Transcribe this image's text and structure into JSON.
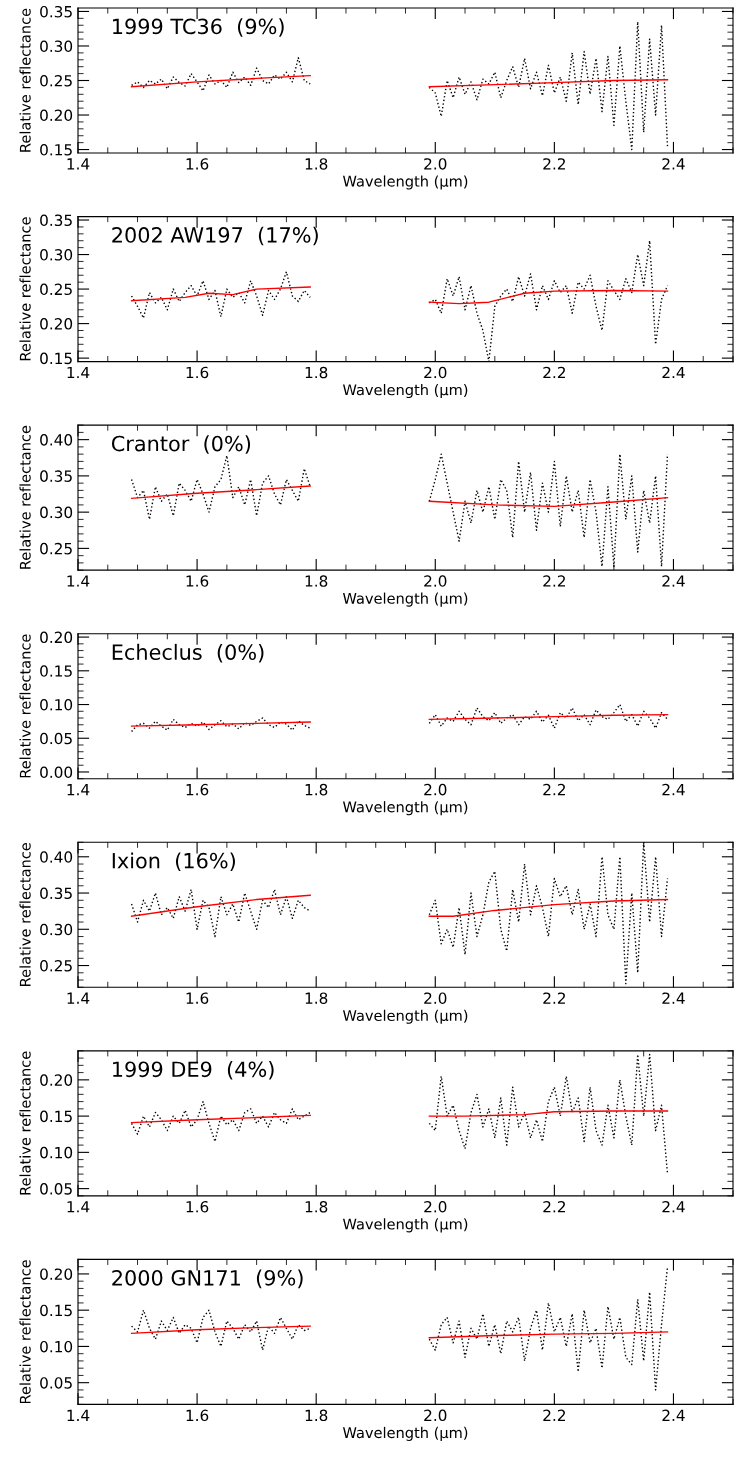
{
  "chart_data": [
    {
      "type": "line",
      "annotations": [
        "1999 TC36  (9%)"
      ],
      "xlabel": "Wavelength (μm)",
      "ylabel": "Relative reflectance",
      "xlim": [
        1.4,
        2.5
      ],
      "xticks": [
        {
          "value": 1.4,
          "label": "1.4"
        },
        {
          "value": 1.6,
          "label": "1.6"
        },
        {
          "value": 1.8,
          "label": "1.8"
        },
        {
          "value": 2.0,
          "label": "2.0"
        },
        {
          "value": 2.2,
          "label": "2.2"
        },
        {
          "value": 2.4,
          "label": "2.4"
        }
      ],
      "ylim": [
        0.145,
        0.355
      ],
      "yticks": [
        {
          "value": 0.15,
          "label": "0.15"
        },
        {
          "value": 0.2,
          "label": "0.20"
        },
        {
          "value": 0.25,
          "label": "0.25"
        },
        {
          "value": 0.3,
          "label": "0.30"
        },
        {
          "value": 0.35,
          "label": "0.35"
        }
      ],
      "legend": false,
      "grid": false,
      "marker": "none",
      "series": [
        {
          "color": "#000000",
          "line_style": "dotted",
          "x": [
            1.49,
            1.5,
            1.51,
            1.52,
            1.53,
            1.54,
            1.55,
            1.56,
            1.57,
            1.58,
            1.59,
            1.6,
            1.61,
            1.62,
            1.63,
            1.64,
            1.65,
            1.66,
            1.67,
            1.68,
            1.69,
            1.7,
            1.71,
            1.72,
            1.73,
            1.74,
            1.75,
            1.76,
            1.77,
            1.78,
            1.79,
            null,
            1.99,
            2.0,
            2.01,
            2.02,
            2.03,
            2.04,
            2.05,
            2.06,
            2.07,
            2.08,
            2.09,
            2.1,
            2.11,
            2.12,
            2.13,
            2.14,
            2.15,
            2.16,
            2.17,
            2.18,
            2.19,
            2.2,
            2.21,
            2.22,
            2.23,
            2.24,
            2.25,
            2.26,
            2.27,
            2.28,
            2.29,
            2.3,
            2.31,
            2.32,
            2.33,
            2.34,
            2.35,
            2.36,
            2.37,
            2.38,
            2.39
          ],
          "values": [
            0.243,
            0.248,
            0.24,
            0.25,
            0.245,
            0.252,
            0.238,
            0.255,
            0.247,
            0.242,
            0.26,
            0.248,
            0.235,
            0.258,
            0.245,
            0.25,
            0.24,
            0.262,
            0.247,
            0.255,
            0.243,
            0.268,
            0.25,
            0.245,
            0.258,
            0.252,
            0.262,
            0.248,
            0.283,
            0.25,
            0.245,
            null,
            0.24,
            0.232,
            0.198,
            0.25,
            0.225,
            0.255,
            0.23,
            0.248,
            0.222,
            0.252,
            0.245,
            0.262,
            0.225,
            0.25,
            0.27,
            0.24,
            0.282,
            0.238,
            0.262,
            0.228,
            0.272,
            0.232,
            0.255,
            0.22,
            0.29,
            0.215,
            0.292,
            0.23,
            0.282,
            0.205,
            0.285,
            0.185,
            0.3,
            0.22,
            0.15,
            0.335,
            0.175,
            0.31,
            0.2,
            0.33,
            0.155
          ]
        },
        {
          "color": "#ff0000",
          "line_style": "solid",
          "x": [
            1.49,
            1.6,
            1.7,
            1.79,
            null,
            1.99,
            2.1,
            2.2,
            2.3,
            2.39
          ],
          "values": [
            0.241,
            0.248,
            0.253,
            0.257,
            null,
            0.241,
            0.244,
            0.247,
            0.25,
            0.251
          ]
        }
      ]
    },
    {
      "type": "line",
      "annotations": [
        "2002 AW197  (17%)"
      ],
      "xlabel": "Wavelength (μm)",
      "ylabel": "Relative reflectance",
      "xlim": [
        1.4,
        2.5
      ],
      "xticks": [
        {
          "value": 1.4,
          "label": "1.4"
        },
        {
          "value": 1.6,
          "label": "1.6"
        },
        {
          "value": 1.8,
          "label": "1.8"
        },
        {
          "value": 2.0,
          "label": "2.0"
        },
        {
          "value": 2.2,
          "label": "2.2"
        },
        {
          "value": 2.4,
          "label": "2.4"
        }
      ],
      "ylim": [
        0.145,
        0.355
      ],
      "yticks": [
        {
          "value": 0.15,
          "label": "0.15"
        },
        {
          "value": 0.2,
          "label": "0.20"
        },
        {
          "value": 0.25,
          "label": "0.25"
        },
        {
          "value": 0.3,
          "label": "0.30"
        },
        {
          "value": 0.35,
          "label": "0.35"
        }
      ],
      "legend": false,
      "grid": false,
      "marker": "none",
      "series": [
        {
          "color": "#000000",
          "line_style": "dotted",
          "x": [
            1.49,
            1.5,
            1.51,
            1.52,
            1.53,
            1.54,
            1.55,
            1.56,
            1.57,
            1.58,
            1.59,
            1.6,
            1.61,
            1.62,
            1.63,
            1.64,
            1.65,
            1.66,
            1.67,
            1.68,
            1.69,
            1.7,
            1.71,
            1.72,
            1.73,
            1.74,
            1.75,
            1.76,
            1.77,
            1.78,
            1.79,
            null,
            1.99,
            2.0,
            2.01,
            2.02,
            2.03,
            2.04,
            2.05,
            2.06,
            2.07,
            2.08,
            2.09,
            2.1,
            2.11,
            2.12,
            2.13,
            2.14,
            2.15,
            2.16,
            2.17,
            2.18,
            2.19,
            2.2,
            2.21,
            2.22,
            2.23,
            2.24,
            2.25,
            2.26,
            2.27,
            2.28,
            2.29,
            2.3,
            2.31,
            2.32,
            2.33,
            2.34,
            2.35,
            2.36,
            2.37,
            2.38,
            2.39
          ],
          "values": [
            0.24,
            0.225,
            0.208,
            0.245,
            0.23,
            0.238,
            0.22,
            0.25,
            0.232,
            0.245,
            0.255,
            0.24,
            0.262,
            0.235,
            0.248,
            0.21,
            0.25,
            0.238,
            0.245,
            0.23,
            0.262,
            0.24,
            0.212,
            0.248,
            0.235,
            0.25,
            0.275,
            0.24,
            0.232,
            0.248,
            0.238,
            null,
            0.23,
            0.235,
            0.215,
            0.265,
            0.24,
            0.268,
            0.22,
            0.255,
            0.215,
            0.19,
            0.145,
            0.225,
            0.24,
            0.25,
            0.232,
            0.268,
            0.24,
            0.272,
            0.22,
            0.255,
            0.235,
            0.262,
            0.245,
            0.255,
            0.215,
            0.26,
            0.25,
            0.27,
            0.225,
            0.19,
            0.262,
            0.248,
            0.235,
            0.265,
            0.245,
            0.3,
            0.255,
            0.32,
            0.17,
            0.235,
            0.255
          ]
        },
        {
          "color": "#ff0000",
          "line_style": "solid",
          "x": [
            1.49,
            1.58,
            1.62,
            1.66,
            1.7,
            1.79,
            null,
            1.99,
            2.04,
            2.09,
            2.15,
            2.2,
            2.3,
            2.39
          ],
          "values": [
            0.233,
            0.238,
            0.244,
            0.242,
            0.25,
            0.253,
            null,
            0.231,
            0.229,
            0.231,
            0.244,
            0.247,
            0.248,
            0.247
          ]
        }
      ]
    },
    {
      "type": "line",
      "annotations": [
        "Crantor  (0%)"
      ],
      "xlabel": "Wavelength (μm)",
      "ylabel": "Relative reflectance",
      "xlim": [
        1.4,
        2.5
      ],
      "xticks": [
        {
          "value": 1.4,
          "label": "1.4"
        },
        {
          "value": 1.6,
          "label": "1.6"
        },
        {
          "value": 1.8,
          "label": "1.8"
        },
        {
          "value": 2.0,
          "label": "2.0"
        },
        {
          "value": 2.2,
          "label": "2.2"
        },
        {
          "value": 2.4,
          "label": "2.4"
        }
      ],
      "ylim": [
        0.22,
        0.42
      ],
      "yticks": [
        {
          "value": 0.25,
          "label": "0.25"
        },
        {
          "value": 0.3,
          "label": "0.30"
        },
        {
          "value": 0.35,
          "label": "0.35"
        },
        {
          "value": 0.4,
          "label": "0.40"
        }
      ],
      "legend": false,
      "grid": false,
      "marker": "none",
      "series": [
        {
          "color": "#000000",
          "line_style": "dotted",
          "x": [
            1.49,
            1.5,
            1.51,
            1.52,
            1.53,
            1.54,
            1.55,
            1.56,
            1.57,
            1.58,
            1.59,
            1.6,
            1.61,
            1.62,
            1.63,
            1.64,
            1.65,
            1.66,
            1.67,
            1.68,
            1.69,
            1.7,
            1.71,
            1.72,
            1.73,
            1.74,
            1.75,
            1.76,
            1.77,
            1.78,
            1.79,
            null,
            1.99,
            2.0,
            2.01,
            2.02,
            2.03,
            2.04,
            2.05,
            2.06,
            2.07,
            2.08,
            2.09,
            2.1,
            2.11,
            2.12,
            2.13,
            2.14,
            2.15,
            2.16,
            2.17,
            2.18,
            2.19,
            2.2,
            2.21,
            2.22,
            2.23,
            2.24,
            2.25,
            2.26,
            2.27,
            2.28,
            2.29,
            2.3,
            2.31,
            2.32,
            2.33,
            2.34,
            2.35,
            2.36,
            2.37,
            2.38,
            2.39
          ],
          "values": [
            0.345,
            0.32,
            0.33,
            0.29,
            0.335,
            0.315,
            0.325,
            0.295,
            0.34,
            0.33,
            0.315,
            0.345,
            0.325,
            0.3,
            0.335,
            0.345,
            0.378,
            0.32,
            0.335,
            0.31,
            0.345,
            0.295,
            0.34,
            0.35,
            0.325,
            0.31,
            0.345,
            0.33,
            0.315,
            0.36,
            0.335,
            null,
            0.315,
            0.345,
            0.38,
            0.34,
            0.3,
            0.26,
            0.315,
            0.285,
            0.33,
            0.3,
            0.335,
            0.29,
            0.345,
            0.33,
            0.265,
            0.37,
            0.3,
            0.355,
            0.275,
            0.34,
            0.3,
            0.37,
            0.28,
            0.35,
            0.3,
            0.33,
            0.265,
            0.345,
            0.3,
            0.225,
            0.335,
            0.225,
            0.38,
            0.29,
            0.35,
            0.245,
            0.33,
            0.285,
            0.35,
            0.225,
            0.38
          ]
        },
        {
          "color": "#ff0000",
          "line_style": "solid",
          "x": [
            1.49,
            1.6,
            1.7,
            1.79,
            null,
            1.99,
            2.1,
            2.2,
            2.3,
            2.39
          ],
          "values": [
            0.319,
            0.326,
            0.331,
            0.336,
            null,
            0.315,
            0.31,
            0.308,
            0.314,
            0.32
          ]
        }
      ]
    },
    {
      "type": "line",
      "annotations": [
        "Echeclus  (0%)"
      ],
      "xlabel": "Wavelength (μm)",
      "ylabel": "Relative reflectance",
      "xlim": [
        1.4,
        2.5
      ],
      "xticks": [
        {
          "value": 1.4,
          "label": "1.4"
        },
        {
          "value": 1.6,
          "label": "1.6"
        },
        {
          "value": 1.8,
          "label": "1.8"
        },
        {
          "value": 2.0,
          "label": "2.0"
        },
        {
          "value": 2.2,
          "label": "2.2"
        },
        {
          "value": 2.4,
          "label": "2.4"
        }
      ],
      "ylim": [
        -0.01,
        0.205
      ],
      "yticks": [
        {
          "value": 0.0,
          "label": "0.00"
        },
        {
          "value": 0.05,
          "label": "0.05"
        },
        {
          "value": 0.1,
          "label": "0.10"
        },
        {
          "value": 0.15,
          "label": "0.15"
        },
        {
          "value": 0.2,
          "label": "0.20"
        }
      ],
      "legend": false,
      "grid": false,
      "marker": "none",
      "series": [
        {
          "color": "#000000",
          "line_style": "dotted",
          "x": [
            1.49,
            1.5,
            1.51,
            1.52,
            1.53,
            1.54,
            1.55,
            1.56,
            1.57,
            1.58,
            1.59,
            1.6,
            1.61,
            1.62,
            1.63,
            1.64,
            1.65,
            1.66,
            1.67,
            1.68,
            1.69,
            1.7,
            1.71,
            1.72,
            1.73,
            1.74,
            1.75,
            1.76,
            1.77,
            1.78,
            1.79,
            null,
            1.99,
            2.0,
            2.01,
            2.02,
            2.03,
            2.04,
            2.05,
            2.06,
            2.07,
            2.08,
            2.09,
            2.1,
            2.11,
            2.12,
            2.13,
            2.14,
            2.15,
            2.16,
            2.17,
            2.18,
            2.19,
            2.2,
            2.21,
            2.22,
            2.23,
            2.24,
            2.25,
            2.26,
            2.27,
            2.28,
            2.29,
            2.3,
            2.31,
            2.32,
            2.33,
            2.34,
            2.35,
            2.36,
            2.37,
            2.38,
            2.39
          ],
          "values": [
            0.06,
            0.07,
            0.072,
            0.065,
            0.075,
            0.068,
            0.062,
            0.078,
            0.07,
            0.066,
            0.072,
            0.068,
            0.074,
            0.063,
            0.07,
            0.076,
            0.067,
            0.071,
            0.064,
            0.073,
            0.069,
            0.075,
            0.08,
            0.07,
            0.066,
            0.074,
            0.071,
            0.062,
            0.076,
            0.069,
            0.065,
            null,
            0.072,
            0.085,
            0.068,
            0.08,
            0.075,
            0.09,
            0.078,
            0.07,
            0.095,
            0.082,
            0.076,
            0.088,
            0.072,
            0.08,
            0.085,
            0.07,
            0.082,
            0.078,
            0.09,
            0.074,
            0.084,
            0.065,
            0.088,
            0.08,
            0.095,
            0.076,
            0.085,
            0.07,
            0.092,
            0.082,
            0.078,
            0.088,
            0.1,
            0.075,
            0.085,
            0.068,
            0.09,
            0.08,
            0.065,
            0.088,
            0.078
          ]
        },
        {
          "color": "#ff0000",
          "line_style": "solid",
          "x": [
            1.49,
            1.6,
            1.7,
            1.79,
            null,
            1.99,
            2.1,
            2.2,
            2.3,
            2.39
          ],
          "values": [
            0.068,
            0.07,
            0.072,
            0.074,
            null,
            0.078,
            0.08,
            0.082,
            0.084,
            0.085
          ]
        }
      ]
    },
    {
      "type": "line",
      "annotations": [
        "Ixion  (16%)"
      ],
      "xlabel": "Wavelength (μm)",
      "ylabel": "Relative reflectance",
      "xlim": [
        1.4,
        2.5
      ],
      "xticks": [
        {
          "value": 1.4,
          "label": "1.4"
        },
        {
          "value": 1.6,
          "label": "1.6"
        },
        {
          "value": 1.8,
          "label": "1.8"
        },
        {
          "value": 2.0,
          "label": "2.0"
        },
        {
          "value": 2.2,
          "label": "2.2"
        },
        {
          "value": 2.4,
          "label": "2.4"
        }
      ],
      "ylim": [
        0.22,
        0.42
      ],
      "yticks": [
        {
          "value": 0.25,
          "label": "0.25"
        },
        {
          "value": 0.3,
          "label": "0.30"
        },
        {
          "value": 0.35,
          "label": "0.35"
        },
        {
          "value": 0.4,
          "label": "0.40"
        }
      ],
      "legend": false,
      "grid": false,
      "marker": "none",
      "series": [
        {
          "color": "#000000",
          "line_style": "dotted",
          "x": [
            1.49,
            1.5,
            1.51,
            1.52,
            1.53,
            1.54,
            1.55,
            1.56,
            1.57,
            1.58,
            1.59,
            1.6,
            1.61,
            1.62,
            1.63,
            1.64,
            1.65,
            1.66,
            1.67,
            1.68,
            1.69,
            1.7,
            1.71,
            1.72,
            1.73,
            1.74,
            1.75,
            1.76,
            1.77,
            1.78,
            1.79,
            null,
            1.99,
            2.0,
            2.01,
            2.02,
            2.03,
            2.04,
            2.05,
            2.06,
            2.07,
            2.08,
            2.09,
            2.1,
            2.11,
            2.12,
            2.13,
            2.14,
            2.15,
            2.16,
            2.17,
            2.18,
            2.19,
            2.2,
            2.21,
            2.22,
            2.23,
            2.24,
            2.25,
            2.26,
            2.27,
            2.28,
            2.29,
            2.3,
            2.31,
            2.32,
            2.33,
            2.34,
            2.35,
            2.36,
            2.37,
            2.38,
            2.39
          ],
          "values": [
            0.335,
            0.31,
            0.34,
            0.325,
            0.35,
            0.32,
            0.33,
            0.315,
            0.345,
            0.325,
            0.355,
            0.3,
            0.34,
            0.33,
            0.29,
            0.345,
            0.32,
            0.335,
            0.31,
            0.35,
            0.325,
            0.3,
            0.34,
            0.33,
            0.355,
            0.32,
            0.345,
            0.315,
            0.34,
            0.33,
            0.325,
            null,
            0.32,
            0.34,
            0.28,
            0.3,
            0.275,
            0.33,
            0.265,
            0.35,
            0.29,
            0.32,
            0.365,
            0.38,
            0.3,
            0.27,
            0.355,
            0.31,
            0.39,
            0.32,
            0.36,
            0.33,
            0.29,
            0.37,
            0.345,
            0.36,
            0.32,
            0.355,
            0.3,
            0.335,
            0.29,
            0.4,
            0.32,
            0.3,
            0.4,
            0.225,
            0.35,
            0.24,
            0.42,
            0.31,
            0.4,
            0.29,
            0.37
          ]
        },
        {
          "color": "#ff0000",
          "line_style": "solid",
          "x": [
            1.49,
            1.6,
            1.7,
            1.79,
            null,
            1.99,
            2.03,
            2.1,
            2.2,
            2.3,
            2.39
          ],
          "values": [
            0.318,
            0.331,
            0.341,
            0.347,
            null,
            0.318,
            0.318,
            0.326,
            0.334,
            0.339,
            0.341
          ]
        }
      ]
    },
    {
      "type": "line",
      "annotations": [
        "1999 DE9  (4%)"
      ],
      "xlabel": "Wavelength (μm)",
      "ylabel": "Relative reflectance",
      "xlim": [
        1.4,
        2.5
      ],
      "xticks": [
        {
          "value": 1.4,
          "label": "1.4"
        },
        {
          "value": 1.6,
          "label": "1.6"
        },
        {
          "value": 1.8,
          "label": "1.8"
        },
        {
          "value": 2.0,
          "label": "2.0"
        },
        {
          "value": 2.2,
          "label": "2.2"
        },
        {
          "value": 2.4,
          "label": "2.4"
        }
      ],
      "ylim": [
        0.04,
        0.24
      ],
      "yticks": [
        {
          "value": 0.05,
          "label": "0.05"
        },
        {
          "value": 0.1,
          "label": "0.10"
        },
        {
          "value": 0.15,
          "label": "0.15"
        },
        {
          "value": 0.2,
          "label": "0.20"
        }
      ],
      "legend": false,
      "grid": false,
      "marker": "none",
      "series": [
        {
          "color": "#000000",
          "line_style": "dotted",
          "x": [
            1.49,
            1.5,
            1.51,
            1.52,
            1.53,
            1.54,
            1.55,
            1.56,
            1.57,
            1.58,
            1.59,
            1.6,
            1.61,
            1.62,
            1.63,
            1.64,
            1.65,
            1.66,
            1.67,
            1.68,
            1.69,
            1.7,
            1.71,
            1.72,
            1.73,
            1.74,
            1.75,
            1.76,
            1.77,
            1.78,
            1.79,
            null,
            1.99,
            2.0,
            2.01,
            2.02,
            2.03,
            2.04,
            2.05,
            2.06,
            2.07,
            2.08,
            2.09,
            2.1,
            2.11,
            2.12,
            2.13,
            2.14,
            2.15,
            2.16,
            2.17,
            2.18,
            2.19,
            2.2,
            2.21,
            2.22,
            2.23,
            2.24,
            2.25,
            2.26,
            2.27,
            2.28,
            2.29,
            2.3,
            2.31,
            2.32,
            2.33,
            2.34,
            2.35,
            2.36,
            2.37,
            2.38,
            2.39
          ],
          "values": [
            0.14,
            0.125,
            0.15,
            0.135,
            0.155,
            0.145,
            0.13,
            0.15,
            0.14,
            0.158,
            0.135,
            0.145,
            0.17,
            0.14,
            0.115,
            0.15,
            0.138,
            0.145,
            0.13,
            0.155,
            0.16,
            0.14,
            0.15,
            0.135,
            0.155,
            0.145,
            0.14,
            0.16,
            0.145,
            0.15,
            0.155,
            null,
            0.14,
            0.13,
            0.205,
            0.15,
            0.165,
            0.13,
            0.105,
            0.155,
            0.18,
            0.135,
            0.16,
            0.12,
            0.175,
            0.11,
            0.19,
            0.135,
            0.155,
            0.12,
            0.145,
            0.115,
            0.17,
            0.19,
            0.15,
            0.205,
            0.155,
            0.175,
            0.115,
            0.19,
            0.13,
            0.11,
            0.165,
            0.12,
            0.2,
            0.15,
            0.11,
            0.235,
            0.15,
            0.235,
            0.13,
            0.165,
            0.07
          ]
        },
        {
          "color": "#ff0000",
          "line_style": "solid",
          "x": [
            1.49,
            1.6,
            1.7,
            1.79,
            null,
            1.99,
            2.05,
            2.15,
            2.2,
            2.3,
            2.39
          ],
          "values": [
            0.141,
            0.145,
            0.148,
            0.151,
            null,
            0.15,
            0.15,
            0.152,
            0.156,
            0.157,
            0.157
          ]
        }
      ]
    },
    {
      "type": "line",
      "annotations": [
        "2000 GN171  (9%)"
      ],
      "xlabel": "Wavelength (μm)",
      "ylabel": "Relative reflectance",
      "xlim": [
        1.4,
        2.5
      ],
      "xticks": [
        {
          "value": 1.4,
          "label": "1.4"
        },
        {
          "value": 1.6,
          "label": "1.6"
        },
        {
          "value": 1.8,
          "label": "1.8"
        },
        {
          "value": 2.0,
          "label": "2.0"
        },
        {
          "value": 2.2,
          "label": "2.2"
        },
        {
          "value": 2.4,
          "label": "2.4"
        }
      ],
      "ylim": [
        0.02,
        0.22
      ],
      "yticks": [
        {
          "value": 0.05,
          "label": "0.05"
        },
        {
          "value": 0.1,
          "label": "0.10"
        },
        {
          "value": 0.15,
          "label": "0.15"
        },
        {
          "value": 0.2,
          "label": "0.20"
        }
      ],
      "legend": false,
      "grid": false,
      "marker": "none",
      "series": [
        {
          "color": "#000000",
          "line_style": "dotted",
          "x": [
            1.49,
            1.5,
            1.51,
            1.52,
            1.53,
            1.54,
            1.55,
            1.56,
            1.57,
            1.58,
            1.59,
            1.6,
            1.61,
            1.62,
            1.63,
            1.64,
            1.65,
            1.66,
            1.67,
            1.68,
            1.69,
            1.7,
            1.71,
            1.72,
            1.73,
            1.74,
            1.75,
            1.76,
            1.77,
            1.78,
            1.79,
            null,
            1.99,
            2.0,
            2.01,
            2.02,
            2.03,
            2.04,
            2.05,
            2.06,
            2.07,
            2.08,
            2.09,
            2.1,
            2.11,
            2.12,
            2.13,
            2.14,
            2.15,
            2.16,
            2.17,
            2.18,
            2.19,
            2.2,
            2.21,
            2.22,
            2.23,
            2.24,
            2.25,
            2.26,
            2.27,
            2.28,
            2.29,
            2.3,
            2.31,
            2.32,
            2.33,
            2.34,
            2.35,
            2.36,
            2.37,
            2.38,
            2.39
          ],
          "values": [
            0.128,
            0.12,
            0.15,
            0.125,
            0.11,
            0.135,
            0.122,
            0.14,
            0.118,
            0.13,
            0.125,
            0.105,
            0.14,
            0.15,
            0.12,
            0.1,
            0.135,
            0.125,
            0.11,
            0.13,
            0.12,
            0.135,
            0.095,
            0.128,
            0.118,
            0.14,
            0.125,
            0.11,
            0.13,
            0.122,
            0.125,
            null,
            0.11,
            0.095,
            0.13,
            0.14,
            0.105,
            0.135,
            0.085,
            0.125,
            0.11,
            0.145,
            0.1,
            0.13,
            0.09,
            0.135,
            0.12,
            0.14,
            0.08,
            0.125,
            0.15,
            0.095,
            0.16,
            0.12,
            0.14,
            0.1,
            0.145,
            0.065,
            0.15,
            0.105,
            0.125,
            0.07,
            0.155,
            0.11,
            0.14,
            0.085,
            0.075,
            0.165,
            0.08,
            0.175,
            0.04,
            0.13,
            0.21
          ]
        },
        {
          "color": "#ff0000",
          "line_style": "solid",
          "x": [
            1.49,
            1.6,
            1.7,
            1.79,
            null,
            1.99,
            2.1,
            2.2,
            2.3,
            2.39
          ],
          "values": [
            0.118,
            0.123,
            0.126,
            0.128,
            null,
            0.112,
            0.115,
            0.117,
            0.118,
            0.12
          ]
        }
      ]
    }
  ]
}
